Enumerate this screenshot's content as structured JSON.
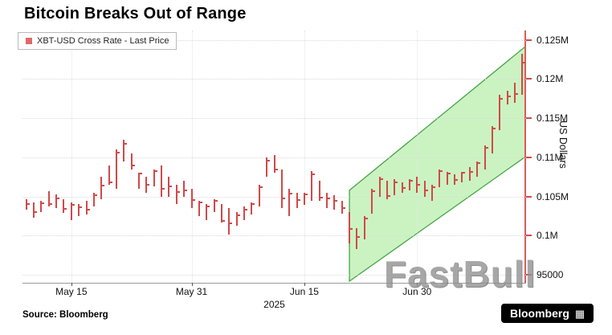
{
  "title": "Bitcoin Breaks Out of Range",
  "legend": {
    "label": "XBT-USD Cross Rate - Last Price",
    "marker_color": "#e06868"
  },
  "y_axis_title": "US Dollars",
  "x_axis_year": "2025",
  "source": "Source: Bloomberg",
  "watermark": "FastBull",
  "logo": {
    "text": "Bloomberg",
    "glyph": "▦"
  },
  "chart_data": {
    "type": "bar",
    "subtype": "hlc-price-bars",
    "series_name": "XBT-USD Cross Rate - Last Price",
    "bar_color": "#cf4a4a",
    "ylim": [
      94000,
      126200
    ],
    "grid": true,
    "legend_position": "top-left",
    "y_ticks": [
      [
        95000,
        "95000"
      ],
      [
        100000,
        "0.1M"
      ],
      [
        105000,
        "0.105M"
      ],
      [
        110000,
        "0.11M"
      ],
      [
        115000,
        "0.115M"
      ],
      [
        120000,
        "0.12M"
      ],
      [
        125000,
        "0.125M"
      ]
    ],
    "x_ticks": [
      [
        6,
        "May 15"
      ],
      [
        22,
        "May 31"
      ],
      [
        37,
        "Jun 15"
      ],
      [
        52,
        "Jun 30"
      ]
    ],
    "bar_columns": [
      "date",
      "high",
      "low",
      "close"
    ],
    "bars": [
      [
        "May 9",
        104700,
        103300,
        104000
      ],
      [
        "May 10",
        104300,
        102300,
        103000
      ],
      [
        "May 11",
        104500,
        103000,
        104200
      ],
      [
        "May 12",
        105700,
        103700,
        104100
      ],
      [
        "May 13",
        105300,
        103500,
        104800
      ],
      [
        "May 14",
        104700,
        102900,
        103400
      ],
      [
        "May 15",
        104300,
        102000,
        103900
      ],
      [
        "May 16",
        104000,
        102500,
        103600
      ],
      [
        "May 17",
        104500,
        102700,
        103300
      ],
      [
        "May 18",
        105500,
        103700,
        105200
      ],
      [
        "May 19",
        107500,
        104700,
        106400
      ],
      [
        "May 20",
        109000,
        106500,
        106800
      ],
      [
        "May 21",
        111000,
        106000,
        110600
      ],
      [
        "May 22",
        112300,
        109500,
        111700
      ],
      [
        "May 23",
        110500,
        108500,
        109000
      ],
      [
        "May 24",
        108000,
        106000,
        107900
      ],
      [
        "May 25",
        107500,
        105500,
        106500
      ],
      [
        "May 26",
        108500,
        106300,
        108300
      ],
      [
        "May 27",
        109000,
        105000,
        106000
      ],
      [
        "May 28",
        107500,
        105000,
        106300
      ],
      [
        "May 29",
        106500,
        104000,
        105600
      ],
      [
        "May 30",
        107000,
        105000,
        105800
      ],
      [
        "May 31",
        106000,
        103500,
        104600
      ],
      [
        "Jun 1",
        104500,
        102500,
        104300
      ],
      [
        "Jun 2",
        104000,
        102000,
        103700
      ],
      [
        "Jun 3",
        104700,
        103000,
        104500
      ],
      [
        "Jun 4",
        104000,
        101700,
        101900
      ],
      [
        "Jun 5",
        103500,
        100200,
        101600
      ],
      [
        "Jun 6",
        103000,
        101300,
        102600
      ],
      [
        "Jun 7",
        103700,
        102000,
        103300
      ],
      [
        "Jun 8",
        104300,
        102700,
        104100
      ],
      [
        "Jun 9",
        106500,
        103700,
        106200
      ],
      [
        "Jun 10",
        110000,
        107500,
        109600
      ],
      [
        "Jun 11",
        110300,
        108000,
        108500
      ],
      [
        "Jun 12",
        108500,
        103500,
        104800
      ],
      [
        "Jun 13",
        106000,
        102500,
        105400
      ],
      [
        "Jun 14",
        105500,
        103500,
        104600
      ],
      [
        "Jun 15",
        105500,
        103900,
        105300
      ],
      [
        "Jun 16",
        108300,
        104500,
        107800
      ],
      [
        "Jun 17",
        107000,
        104500,
        104900
      ],
      [
        "Jun 18",
        105500,
        103500,
        104800
      ],
      [
        "Jun 19",
        105200,
        103300,
        104500
      ],
      [
        "Jun 20",
        104500,
        102800,
        103500
      ],
      [
        "Jun 21",
        103000,
        99000,
        100900
      ],
      [
        "Jun 22",
        101000,
        98300,
        99800
      ],
      [
        "Jun 23",
        102500,
        99500,
        102200
      ],
      [
        "Jun 24",
        106000,
        102800,
        105700
      ],
      [
        "Jun 25",
        107500,
        105000,
        107200
      ],
      [
        "Jun 26",
        107000,
        104700,
        105100
      ],
      [
        "Jun 27",
        107200,
        105200,
        106800
      ],
      [
        "Jun 28",
        106800,
        105500,
        106100
      ],
      [
        "Jun 29",
        107200,
        105800,
        107000
      ],
      [
        "Jun 30",
        107500,
        105500,
        106500
      ],
      [
        "Jul 1",
        107000,
        105000,
        105800
      ],
      [
        "Jul 2",
        106500,
        104500,
        106200
      ],
      [
        "Jul 3",
        108500,
        106200,
        108300
      ],
      [
        "Jul 4",
        108200,
        106500,
        107900
      ],
      [
        "Jul 5",
        107800,
        106500,
        107100
      ],
      [
        "Jul 6",
        108200,
        106800,
        108000
      ],
      [
        "Jul 7",
        108800,
        107000,
        108200
      ],
      [
        "Jul 8",
        109500,
        107500,
        109300
      ],
      [
        "Jul 9",
        111500,
        108500,
        111200
      ],
      [
        "Jul 10",
        114000,
        110500,
        113700
      ],
      [
        "Jul 11",
        118000,
        113500,
        117500
      ],
      [
        "Jul 12",
        118500,
        116800,
        117800
      ],
      [
        "Jul 13",
        119500,
        117000,
        118100
      ],
      [
        "Jul 14",
        123200,
        118000,
        122100
      ]
    ],
    "channel": {
      "description": "green ascending trend channel",
      "start_index": 43,
      "end_index": 68.5,
      "upper_values": [
        105800,
        125800
      ],
      "lower_values": [
        94200,
        111500
      ],
      "fill": "#b9efae",
      "fill_opacity": 0.75,
      "stroke": "#46a546"
    }
  }
}
